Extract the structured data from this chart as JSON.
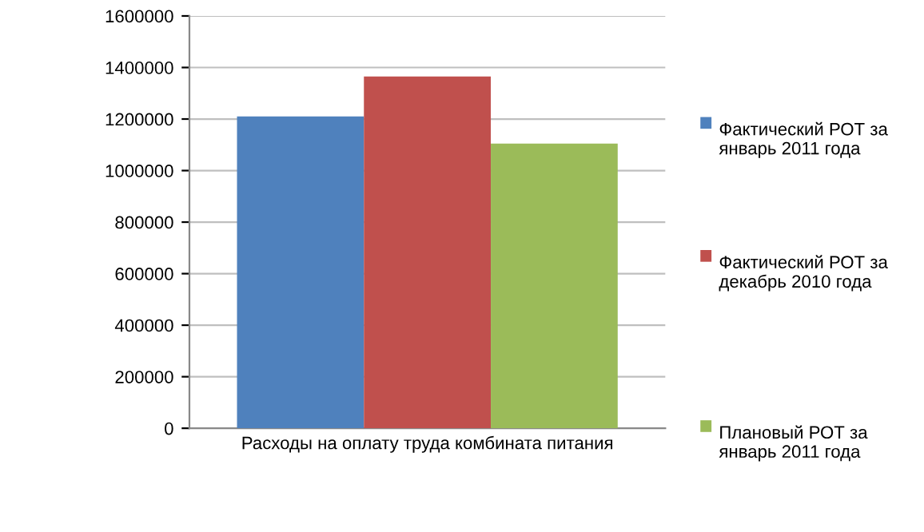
{
  "chart_data": {
    "type": "bar",
    "categories": [
      "Расходы на оплату труда комбината питания"
    ],
    "series": [
      {
        "name": "Фактический РОТ за январь 2011 года",
        "color": "#4f81bd",
        "values": [
          1210000
        ]
      },
      {
        "name": "Фактический РОТ за декабрь 2010 года",
        "color": "#c0504d",
        "values": [
          1365000
        ]
      },
      {
        "name": "Плановый РОТ за январь 2011 года",
        "color": "#9bbb59",
        "values": [
          1105000
        ]
      }
    ],
    "ylim": [
      0,
      1600000
    ],
    "yticks": [
      0,
      200000,
      400000,
      600000,
      800000,
      1000000,
      1200000,
      1400000,
      1600000
    ],
    "grid": "y",
    "legend": "right"
  }
}
